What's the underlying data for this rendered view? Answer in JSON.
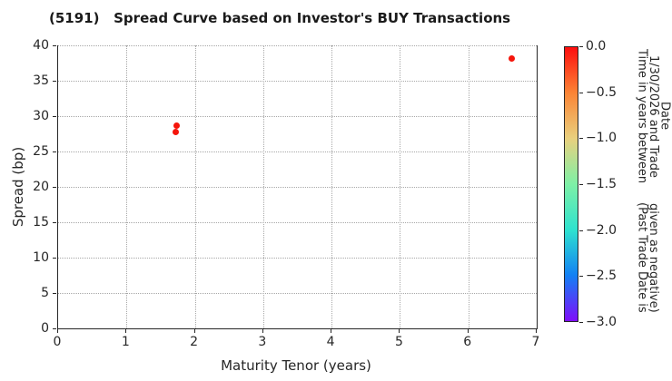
{
  "chart_data": {
    "type": "scatter",
    "title": "(5191)   Spread Curve based on Investor's BUY Transactions",
    "xlabel": "Maturity Tenor (years)",
    "ylabel": "Spread (bp)",
    "xlim": [
      0,
      7
    ],
    "ylim": [
      0,
      40
    ],
    "x_ticks": [
      0,
      1,
      2,
      3,
      4,
      5,
      6,
      7
    ],
    "y_ticks": [
      0,
      5,
      10,
      15,
      20,
      25,
      30,
      35,
      40
    ],
    "grid": true,
    "grid_color": "#a8a8a8",
    "axis_color": "#262626",
    "legend_position": "none",
    "points": [
      {
        "x": 1.72,
        "y": 27.8,
        "time_value": 0.0,
        "color": "#f5150b"
      },
      {
        "x": 1.73,
        "y": 28.6,
        "time_value": 0.0,
        "color": "#f5150b"
      },
      {
        "x": 6.64,
        "y": 38.1,
        "time_value": 0.0,
        "color": "#f5150b"
      }
    ],
    "colorbar": {
      "title_lines": [
        "Time in years between 1/30/2026 and Trade Date",
        "(Past Trade Date is given as negative)"
      ],
      "tick_labels": [
        "0.0",
        "−0.5",
        "−1.0",
        "−1.5",
        "−2.0",
        "−2.5",
        "−3.0"
      ],
      "tick_values": [
        0,
        -0.5,
        -1,
        -1.5,
        -2,
        -2.5,
        -3
      ],
      "vmax": 0.0,
      "vmin": -3.0,
      "colormap": "rainbow_r",
      "gradient_stops": [
        "#fd0e0e",
        "#fb8435",
        "#e9d07e",
        "#7ef0a6",
        "#2ee2cf",
        "#1380f4",
        "#7f0dfa"
      ]
    }
  }
}
